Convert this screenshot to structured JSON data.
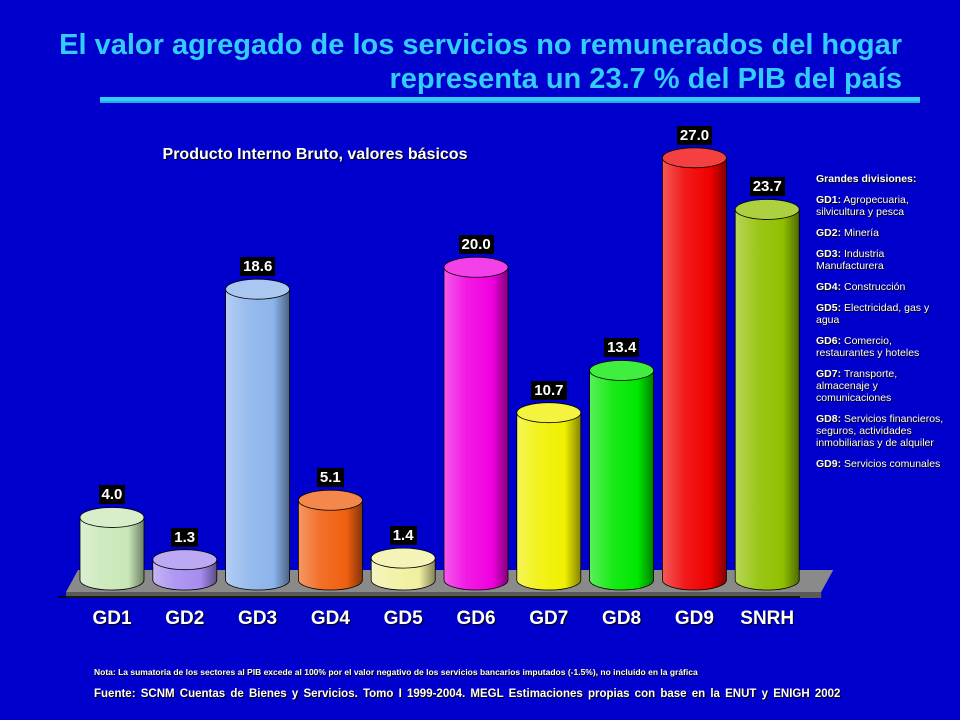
{
  "title": {
    "line1": "El valor agregado de los servicios no remunerados del hogar",
    "line2": "representa un 23.7 % del PIB del país"
  },
  "chart_data": {
    "type": "bar",
    "title": "Producto Interno Bruto, valores básicos",
    "xlabel": "",
    "ylabel": "",
    "categories": [
      "GD1",
      "GD2",
      "GD3",
      "GD4",
      "GD5",
      "GD6",
      "GD7",
      "GD8",
      "GD9",
      "SNRH"
    ],
    "values": [
      4.0,
      1.3,
      18.6,
      5.1,
      1.4,
      20.0,
      10.7,
      13.4,
      27.0,
      23.7
    ],
    "value_labels": [
      "4.0",
      "1.3",
      "18.6",
      "5.1",
      "1.4",
      "20.0",
      "10.7",
      "13.4",
      "27.0",
      "23.7"
    ],
    "colors": [
      "#C8E8B8",
      "#A68CF0",
      "#8CB4EC",
      "#F06010",
      "#F0F0A0",
      "#F000E0",
      "#F0F000",
      "#00E800",
      "#F00000",
      "#90C000"
    ],
    "ylim": [
      0,
      27.5
    ],
    "grid": false,
    "legend": "right"
  },
  "legend": {
    "heading": "Grandes divisiones:",
    "items": [
      {
        "code": "GD1:",
        "text": "Agropecuaria, silvicultura y pesca"
      },
      {
        "code": "GD2:",
        "text": "Minería"
      },
      {
        "code": "GD3:",
        "text": "Industria Manufacturera"
      },
      {
        "code": "GD4:",
        "text": "Construcción"
      },
      {
        "code": "GD5:",
        "text": "Electricidad, gas y agua"
      },
      {
        "code": "GD6:",
        "text": "Comercio, restaurantes y hoteles"
      },
      {
        "code": "GD7:",
        "text": "Transporte, almacenaje y comunicaciones"
      },
      {
        "code": "GD8:",
        "text": "Servicios financieros, seguros, actividades inmobiliarias y de alquiler"
      },
      {
        "code": "GD9:",
        "text": "Servicios comunales"
      }
    ]
  },
  "note": "Nota: La sumatoria de los sectores al PIB excede al 100% por el valor negativo de los servicios bancarios imputados (-1.5%), no incluido en la gráfica",
  "source": "Fuente: SCNM Cuentas de Bienes y Servicios. Tomo I 1999-2004. MEGL Estimaciones propias con base en la ENUT y ENIGH 2002"
}
